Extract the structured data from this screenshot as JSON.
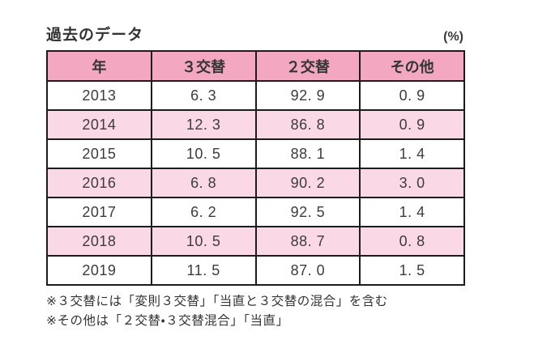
{
  "page": {
    "title": "過去のデータ",
    "unit_label": "(%)"
  },
  "table": {
    "columns": [
      "年",
      "３交替",
      "２交替",
      "その他"
    ],
    "rows": [
      {
        "cells": [
          "2013",
          "6. 3",
          "92. 9",
          "0. 9"
        ],
        "alt": false
      },
      {
        "cells": [
          "2014",
          "12. 3",
          "86. 8",
          "0. 9"
        ],
        "alt": true
      },
      {
        "cells": [
          "2015",
          "10. 5",
          "88. 1",
          "1. 4"
        ],
        "alt": false
      },
      {
        "cells": [
          "2016",
          "6. 8",
          "90. 2",
          "3. 0"
        ],
        "alt": true
      },
      {
        "cells": [
          "2017",
          "6. 2",
          "92. 5",
          "1. 4"
        ],
        "alt": false
      },
      {
        "cells": [
          "2018",
          "10. 5",
          "88. 7",
          "0. 8"
        ],
        "alt": true
      },
      {
        "cells": [
          "2019",
          "11. 5",
          "87. 0",
          "1. 5"
        ],
        "alt": false
      }
    ]
  },
  "footnotes": [
    "※３交替には「変則３交替」「当直と３交替の混合」を含む",
    "※その他は「２交替・３交替混合」「当直」"
  ],
  "colors": {
    "header_bg": "#f3a7c1",
    "alt_row_bg": "#fbd8e5",
    "border": "#1c1c1c",
    "text": "#3c3c3c"
  }
}
